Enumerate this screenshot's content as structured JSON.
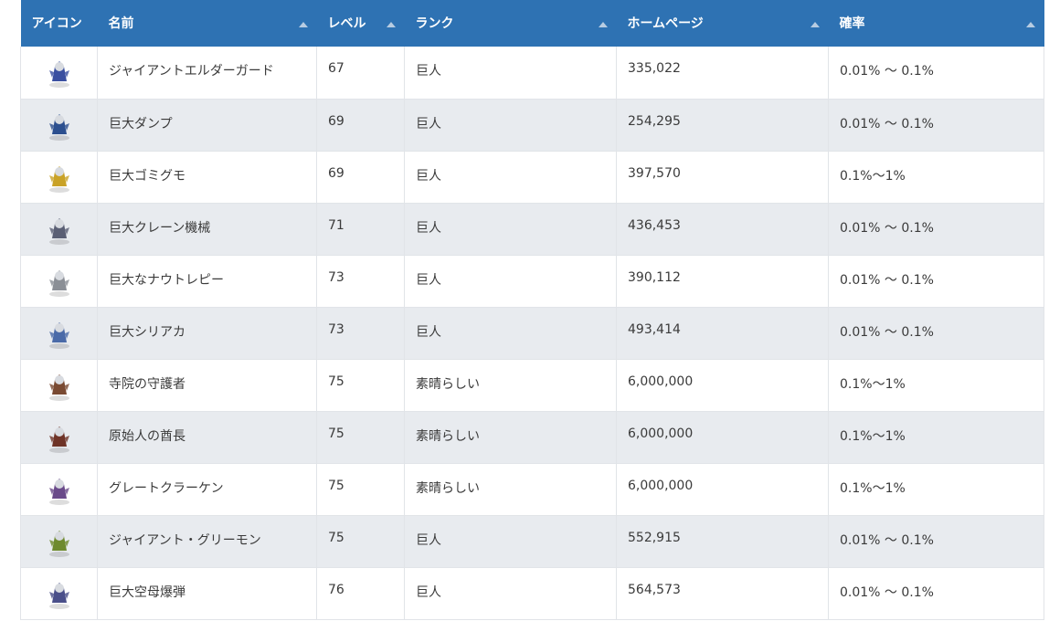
{
  "columns": [
    {
      "label": "アイコン",
      "sortable": false
    },
    {
      "label": "名前",
      "sortable": true
    },
    {
      "label": "レベル",
      "sortable": true
    },
    {
      "label": "ランク",
      "sortable": true
    },
    {
      "label": "ホームページ",
      "sortable": true
    },
    {
      "label": "確率",
      "sortable": true
    }
  ],
  "rows": [
    {
      "name": "ジャイアントエルダーガード",
      "level": "67",
      "rank": "巨人",
      "hp": "335,022",
      "rate": "0.01% 〜 0.1%",
      "icon": "elder-guard-icon",
      "color": "#3a4fa0"
    },
    {
      "name": "巨大ダンプ",
      "level": "69",
      "rank": "巨人",
      "hp": "254,295",
      "rate": "0.01% 〜 0.1%",
      "icon": "dump-truck-robot-icon",
      "color": "#2c4f8f"
    },
    {
      "name": "巨大ゴミグモ",
      "level": "69",
      "rank": "巨人",
      "hp": "397,570",
      "rate": "0.1%〜1%",
      "icon": "trash-spider-icon",
      "color": "#c9a227"
    },
    {
      "name": "巨大クレーン機械",
      "level": "71",
      "rank": "巨人",
      "hp": "436,453",
      "rate": "0.01% 〜 0.1%",
      "icon": "crane-machine-icon",
      "color": "#5a5f74"
    },
    {
      "name": "巨大なナウトレピー",
      "level": "73",
      "rank": "巨人",
      "hp": "390,112",
      "rate": "0.01% 〜 0.1%",
      "icon": "nautrepi-icon",
      "color": "#8b8f96"
    },
    {
      "name": "巨大シリアカ",
      "level": "73",
      "rank": "巨人",
      "hp": "493,414",
      "rate": "0.01% 〜 0.1%",
      "icon": "siriaca-icon",
      "color": "#4a6aa8"
    },
    {
      "name": "寺院の守護者",
      "level": "75",
      "rank": "素晴らしい",
      "hp": "6,000,000",
      "rate": "0.1%〜1%",
      "icon": "temple-guardian-icon",
      "color": "#7a4a32"
    },
    {
      "name": "原始人の酋長",
      "level": "75",
      "rank": "素晴らしい",
      "hp": "6,000,000",
      "rate": "0.1%〜1%",
      "icon": "caveman-chief-icon",
      "color": "#6e3327"
    },
    {
      "name": "グレートクラーケン",
      "level": "75",
      "rank": "素晴らしい",
      "hp": "6,000,000",
      "rate": "0.1%〜1%",
      "icon": "great-kraken-icon",
      "color": "#6a4a8a"
    },
    {
      "name": "ジャイアント・グリーモン",
      "level": "75",
      "rank": "巨人",
      "hp": "552,915",
      "rate": "0.01% 〜 0.1%",
      "icon": "giant-greemon-icon",
      "color": "#6e8a2e"
    },
    {
      "name": "巨大空母爆弾",
      "level": "76",
      "rank": "巨人",
      "hp": "564,573",
      "rate": "0.01% 〜 0.1%",
      "icon": "carrier-bomb-icon",
      "color": "#4a4f8a"
    }
  ]
}
